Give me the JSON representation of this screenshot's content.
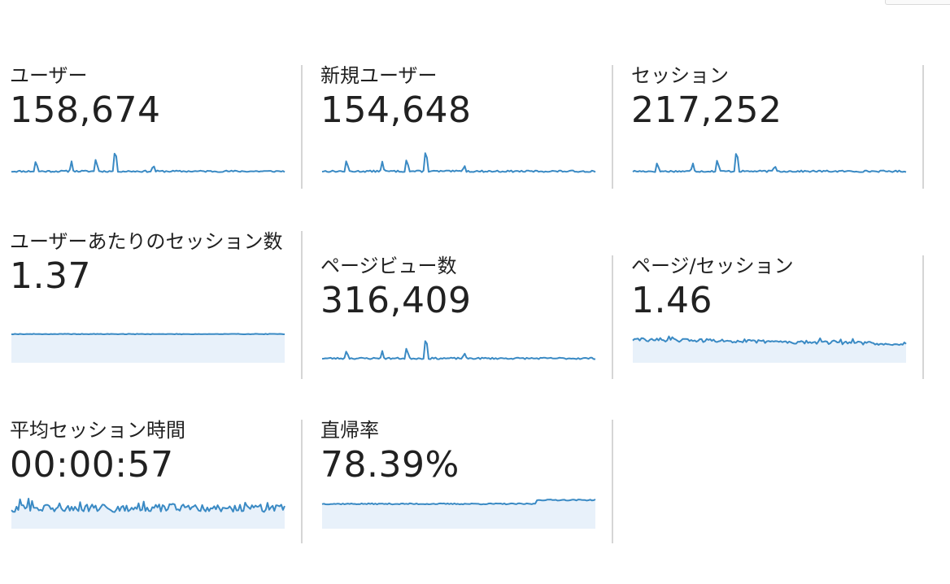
{
  "metrics": [
    {
      "id": "users",
      "label": "ユーザー",
      "value": "158,674",
      "fill": false,
      "spark": {
        "type": "spike",
        "seed": 11,
        "spikes": [
          [
            9,
            0.45
          ],
          [
            22,
            0.35
          ],
          [
            31,
            0.55
          ],
          [
            38,
            1.0
          ],
          [
            52,
            0.25
          ]
        ],
        "base": 0.1
      }
    },
    {
      "id": "new-users",
      "label": "新規ユーザー",
      "value": "154,648",
      "fill": false,
      "spark": {
        "type": "spike",
        "seed": 13,
        "spikes": [
          [
            9,
            0.45
          ],
          [
            22,
            0.35
          ],
          [
            31,
            0.55
          ],
          [
            38,
            1.0
          ],
          [
            52,
            0.25
          ]
        ],
        "base": 0.1
      }
    },
    {
      "id": "sessions",
      "label": "セッション",
      "value": "217,252",
      "fill": false,
      "spark": {
        "type": "spike",
        "seed": 17,
        "spikes": [
          [
            9,
            0.35
          ],
          [
            22,
            0.3
          ],
          [
            31,
            0.5
          ],
          [
            38,
            1.0
          ],
          [
            52,
            0.25
          ]
        ],
        "base": 0.1
      }
    },
    {
      "id": "sessions-per-user",
      "label": "ユーザーあたりのセッション数",
      "value": "1.37",
      "fill": true,
      "spark": {
        "type": "flat",
        "seed": 19,
        "level": 0.92,
        "noise": 0.02
      }
    },
    {
      "id": "pageviews",
      "label": "ページビュー数",
      "value": "316,409",
      "fill": false,
      "spark": {
        "type": "spike",
        "seed": 23,
        "spikes": [
          [
            9,
            0.35
          ],
          [
            22,
            0.25
          ],
          [
            31,
            0.45
          ],
          [
            38,
            1.0
          ],
          [
            52,
            0.2
          ]
        ],
        "base": 0.1
      }
    },
    {
      "id": "pages-per-session",
      "label": "ページ/セッション",
      "value": "1.46",
      "fill": true,
      "spark": {
        "type": "noisy",
        "seed": 29,
        "level": 0.72,
        "noise": 0.12,
        "trend": -0.15
      }
    },
    {
      "id": "avg-session-duration",
      "label": "平均セッション時間",
      "value": "00:00:57",
      "fill": true,
      "spark": {
        "type": "noisy",
        "seed": 31,
        "level": 0.62,
        "noise": 0.28,
        "trend": 0
      }
    },
    {
      "id": "bounce-rate",
      "label": "直帰率",
      "value": "78.39%",
      "fill": true,
      "spark": {
        "type": "step",
        "seed": 37,
        "level": 0.78,
        "level2": 0.92,
        "stepAt": 0.78,
        "noise": 0.04
      }
    }
  ],
  "colors": {
    "line": "#3a8ac4",
    "fill": "#e8f1fa",
    "divider": "#d5d5d5"
  }
}
